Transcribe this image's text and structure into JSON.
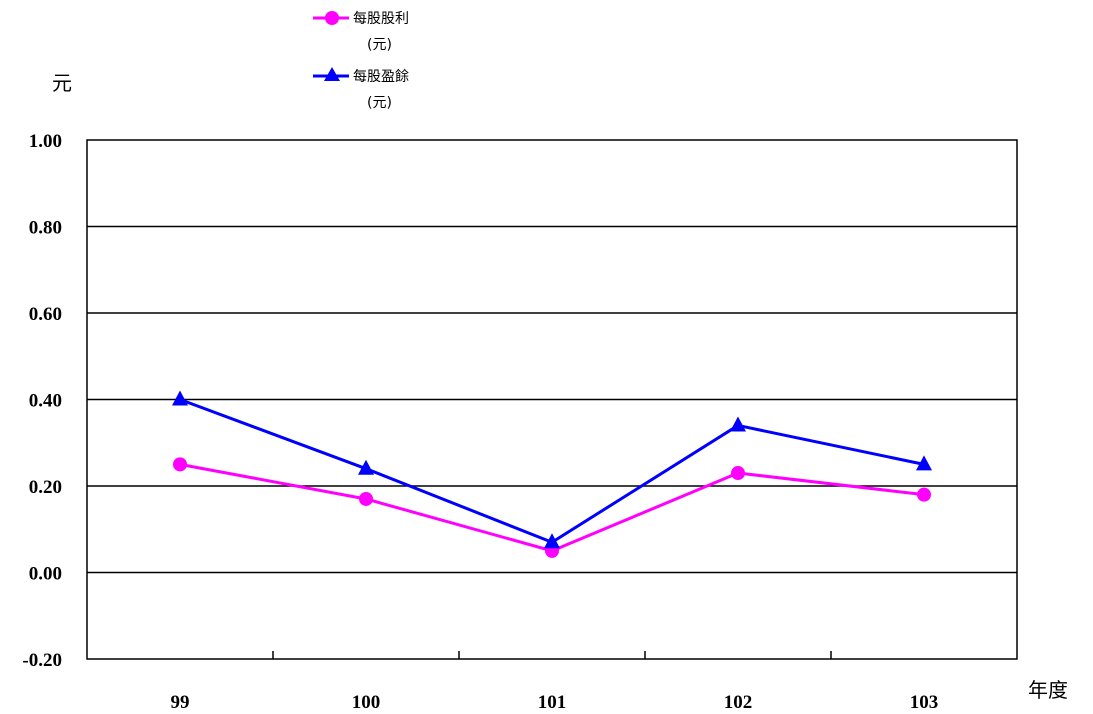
{
  "chart_data": {
    "type": "line",
    "ylabel": "元",
    "xlabel": "年度",
    "categories": [
      "99",
      "100",
      "101",
      "102",
      "103"
    ],
    "y_ticks": [
      "1.00",
      "0.80",
      "0.60",
      "0.40",
      "0.20",
      "0.00",
      "-0.20"
    ],
    "ylim": [
      -0.2,
      1.0
    ],
    "grid": true,
    "legend_position": "top",
    "series": [
      {
        "name_line1": "每股股利",
        "name_line2": "(元)",
        "color": "#ff00ff",
        "marker": "circle",
        "values": [
          0.25,
          0.17,
          0.05,
          0.23,
          0.18
        ]
      },
      {
        "name_line1": "每股盈餘",
        "name_line2": "(元)",
        "color": "#0000ff",
        "marker": "triangle",
        "values": [
          0.4,
          0.24,
          0.07,
          0.34,
          0.25
        ]
      }
    ]
  }
}
